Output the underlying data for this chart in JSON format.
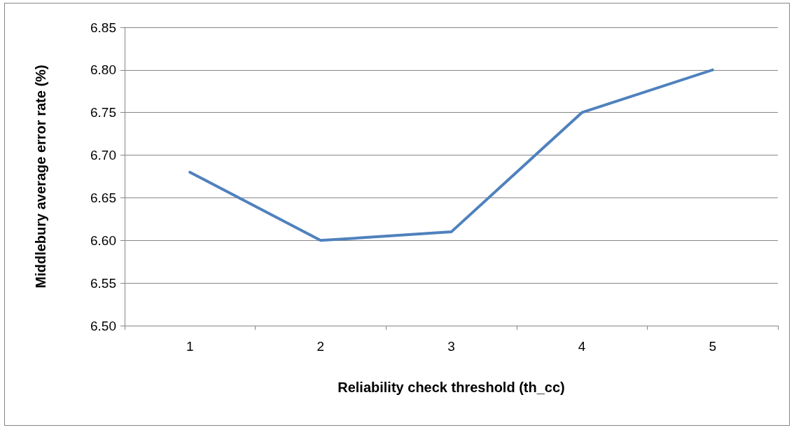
{
  "chart_data": {
    "type": "line",
    "xlabel": "Reliability check threshold (th_cc)",
    "ylabel": "Middlebury average error rate (%)",
    "categories": [
      "1",
      "2",
      "3",
      "4",
      "5"
    ],
    "series": [
      {
        "color": "#4f81bd",
        "values": [
          6.68,
          6.6,
          6.61,
          6.75,
          6.8
        ]
      }
    ],
    "ylim": [
      6.5,
      6.85
    ],
    "yticks": [
      {
        "value": 6.5,
        "label": "6.50"
      },
      {
        "value": 6.55,
        "label": "6.55"
      },
      {
        "value": 6.6,
        "label": "6.60"
      },
      {
        "value": 6.65,
        "label": "6.65"
      },
      {
        "value": 6.7,
        "label": "6.70"
      },
      {
        "value": 6.75,
        "label": "6.75"
      },
      {
        "value": 6.8,
        "label": "6.80"
      },
      {
        "value": 6.85,
        "label": "6.85"
      }
    ],
    "grid": "y",
    "marker": "none",
    "line_style": "solid"
  }
}
